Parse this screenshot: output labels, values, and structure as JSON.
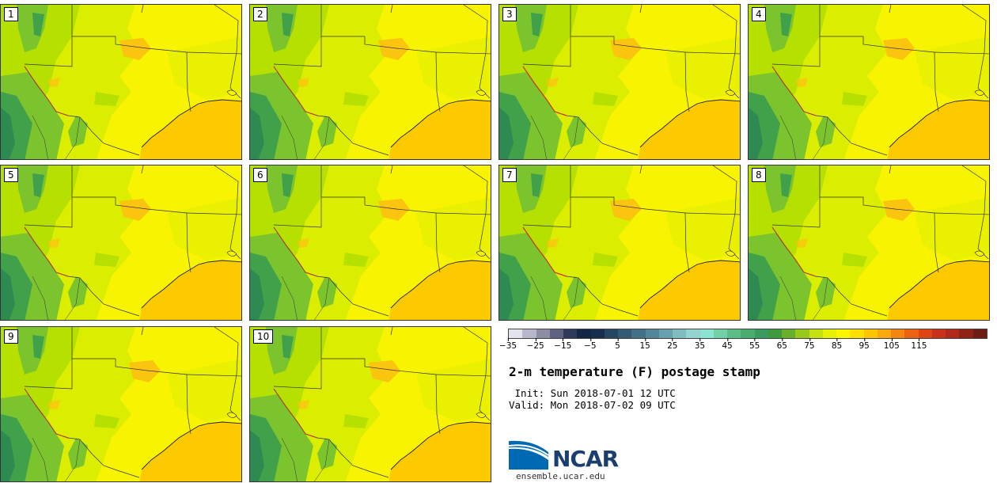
{
  "panels": [
    {
      "label": "1",
      "variant": 0
    },
    {
      "label": "2",
      "variant": 1
    },
    {
      "label": "3",
      "variant": 2
    },
    {
      "label": "4",
      "variant": 3
    },
    {
      "label": "5",
      "variant": 0
    },
    {
      "label": "6",
      "variant": 1
    },
    {
      "label": "7",
      "variant": 2
    },
    {
      "label": "8",
      "variant": 3
    },
    {
      "label": "9",
      "variant": 1
    },
    {
      "label": "10",
      "variant": 0
    }
  ],
  "map_colors": {
    "warm_yellow": "#f8f300",
    "yellow_green": "#dcee00",
    "lime": "#b6e000",
    "green": "#7cc42e",
    "dark_green": "#41a14a",
    "teal_green": "#2f8a52",
    "orange_hot": "#fbc40f",
    "gulf": "#fdca00",
    "border": "#333333",
    "river": "#d0351e"
  },
  "colorbar": {
    "colors": [
      "#e3e3ee",
      "#b7b7cc",
      "#8c8ca3",
      "#5e6280",
      "#2f3a5b",
      "#142646",
      "#172f4f",
      "#254764",
      "#345b74",
      "#427086",
      "#54869a",
      "#68a0ad",
      "#7fbcbf",
      "#94d3cf",
      "#8ce3d2",
      "#72cfa6",
      "#5cbd86",
      "#49ab70",
      "#3b9a5d",
      "#3e9a3c",
      "#68b02b",
      "#98c81c",
      "#c5e10e",
      "#e6ef05",
      "#fbf500",
      "#fde000",
      "#fcc500",
      "#f9a90c",
      "#f4860f",
      "#ec6212",
      "#df4413",
      "#c9321a",
      "#b02a1b",
      "#8e2316",
      "#6e1d14"
    ],
    "tick_labels": [
      "−35",
      "−25",
      "−15",
      "−5",
      "5",
      "15",
      "25",
      "35",
      "45",
      "55",
      "65",
      "75",
      "85",
      "95",
      "105",
      "115"
    ]
  },
  "title": "2-m temperature (F) postage stamp",
  "init_line": " Init: Sun 2018-07-01 12 UTC",
  "valid_line": "Valid: Mon 2018-07-02 09 UTC",
  "logo": {
    "name": "NCAR",
    "brand_blue": "#0069b4",
    "navy": "#1a3e6e"
  },
  "site": "ensemble.ucar.edu"
}
